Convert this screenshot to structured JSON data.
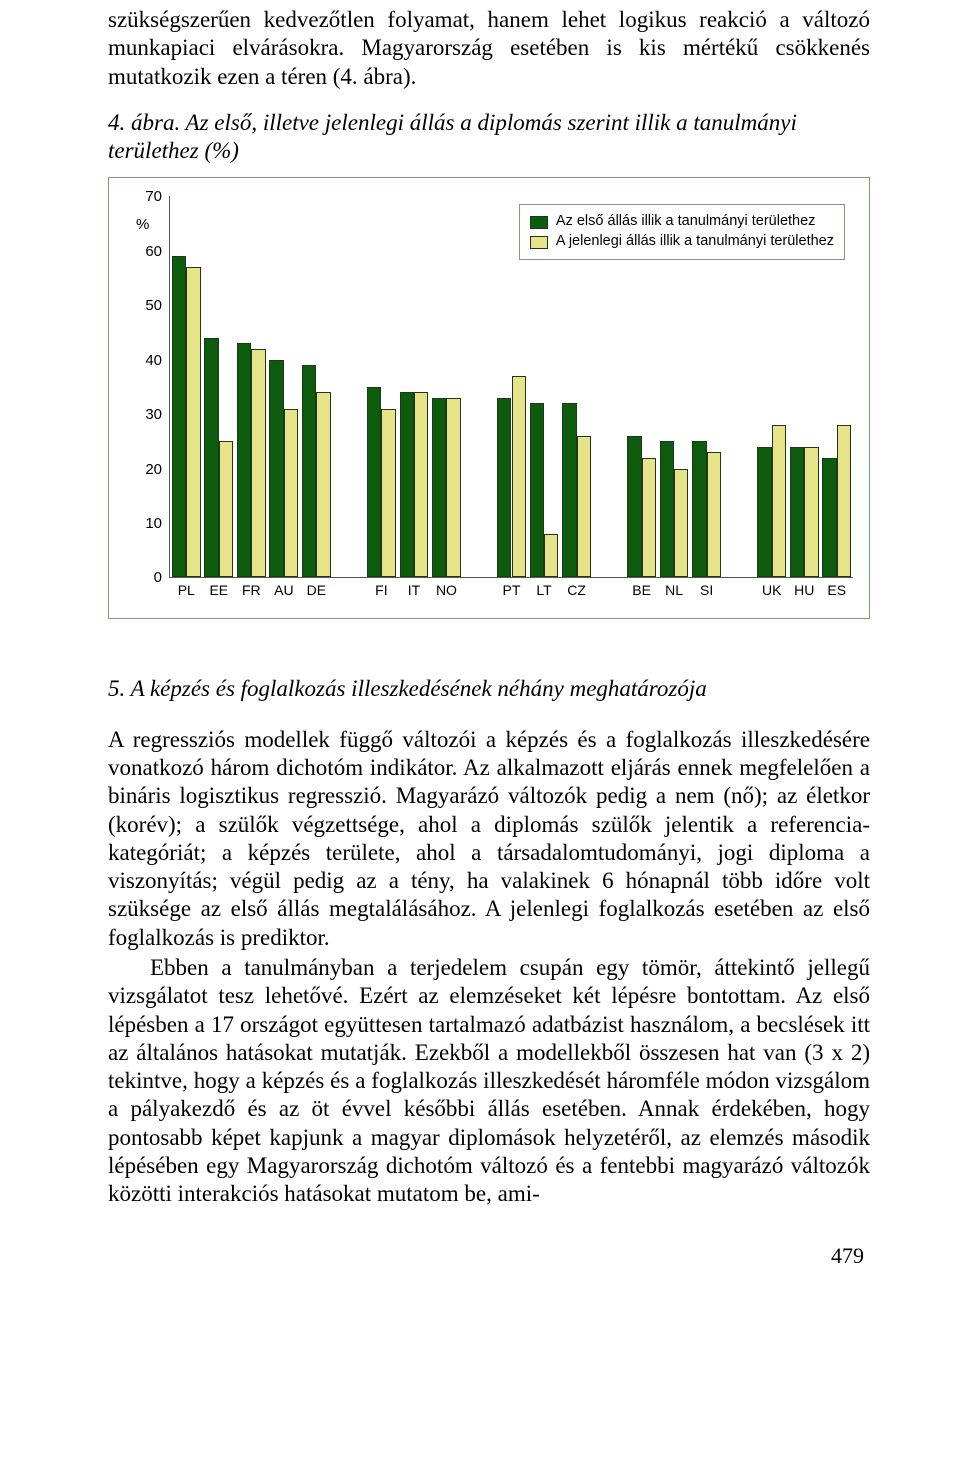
{
  "intro_text": "szükségszerűen kedvezőtlen folyamat, hanem lehet logikus reakció a változó munkapiaci elvárásokra. Magyarország esetében is kis mértékű csökkenés mutatkozik ezen a téren (4. ábra).",
  "figure_caption": "4. ábra. Az első, illetve jelenlegi állás a diplomás szerint illik a tanulmányi területhez (%)",
  "chart": {
    "type": "bar",
    "y_unit_label": "%",
    "ylim": [
      0,
      70
    ],
    "ytick_step": 10,
    "yticks": [
      0,
      10,
      20,
      30,
      40,
      50,
      60,
      70
    ],
    "background_color": "#ffffff",
    "grid": false,
    "border_color": "#7a9a7a",
    "axis_color": "#555555",
    "bar_border_color": "#1b3a1b",
    "series": [
      {
        "key": "first",
        "label": "Az első állás illik a tanulmányi területhez",
        "color": "#0d5b0d"
      },
      {
        "key": "current",
        "label": "A jelenlegi állás illik a tanulmányi területhez",
        "color": "#e6e389"
      }
    ],
    "legend_position": "top-right",
    "category_groups": [
      {
        "start": 0,
        "end": 5
      },
      {
        "start": 5,
        "end": 8
      },
      {
        "start": 8,
        "end": 11
      },
      {
        "start": 11,
        "end": 14
      },
      {
        "start": 14,
        "end": 17
      }
    ],
    "categories": [
      "PL",
      "EE",
      "FR",
      "AU",
      "DE",
      "FI",
      "IT",
      "NO",
      "PT",
      "LT",
      "CZ",
      "BE",
      "NL",
      "SI",
      "UK",
      "HU",
      "ES"
    ],
    "data": {
      "first": [
        59,
        44,
        43,
        40,
        39,
        35,
        34,
        33,
        33,
        32,
        32,
        26,
        25,
        25,
        24,
        24,
        22
      ],
      "current": [
        57,
        25,
        42,
        31,
        34,
        31,
        34,
        33,
        37,
        8,
        26,
        22,
        20,
        23,
        28,
        24,
        28
      ]
    },
    "special_bars": {
      "HU": {
        "first_pattern": "diag",
        "current_pattern": "dots"
      }
    },
    "bar_pair_width_pct": 2.1,
    "tick_fontsize": 15,
    "label_fontsize": 14
  },
  "section_heading": "5. A képzés és foglalkozás illeszkedésének néhány meghatározója",
  "para1": "A regressziós modellek függő változói a képzés és a foglalkozás illeszkedésére vonatkozó három dichotóm indikátor. Az alkalmazott eljárás ennek megfelelően a bináris logisztikus regresszió. Magyarázó változók pedig a nem (nő); az életkor (korév); a szülők végzettsége, ahol a diplomás szülők jelentik a referencia-kategóriát; a képzés területe, ahol a társadalomtudományi, jogi diploma a viszonyítás; végül pedig az a tény, ha valakinek 6 hónapnál több időre volt szüksége az első állás megtalálásához. A jelenlegi foglalkozás esetében az első foglalkozás is prediktor.",
  "para2": "Ebben a tanulmányban a terjedelem csupán egy tömör, áttekintő jellegű vizsgálatot tesz lehetővé. Ezért az elemzéseket két lépésre bontottam. Az első lépésben a 17 országot együttesen tartalmazó adatbázist használom, a becslések itt az általános hatásokat mutatják. Ezekből a modellekből összesen hat van (3 x 2) tekintve, hogy a képzés és a foglalkozás illeszkedését háromféle módon vizsgálom a pályakezdő és az öt évvel későbbi állás esetében. Annak érdekében, hogy pontosabb képet kapjunk a magyar diplomások helyzetéről, az elemzés második lépésében egy Magyarország dichotóm változó és a fentebbi magyarázó változók közötti interakciós hatásokat mutatom be, ami-",
  "page_number": "479"
}
